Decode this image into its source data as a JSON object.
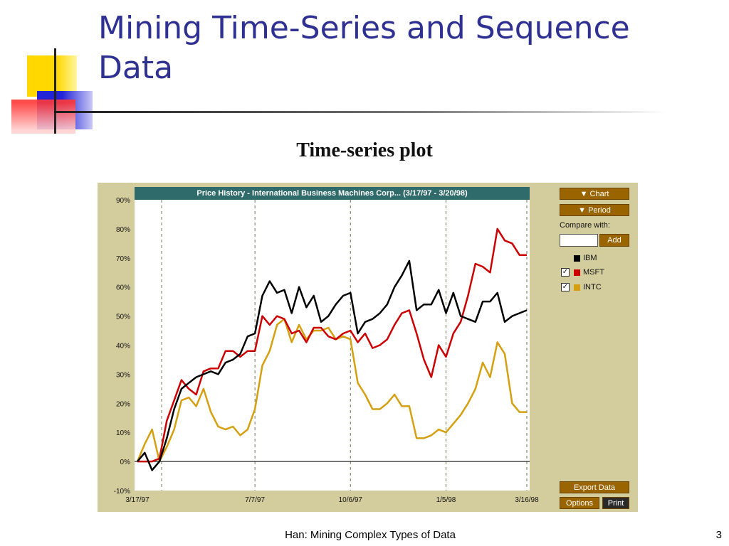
{
  "slide": {
    "title": "Mining Time-Series and Sequence Data",
    "subtitle": "Time-series plot",
    "footer_text": "Han: Mining Complex Types of Data",
    "page_number": "3"
  },
  "controls": {
    "chart_button": "▼ Chart",
    "period_button": "▼ Period",
    "compare_label": "Compare with:",
    "compare_value": "",
    "add_button": "Add",
    "export_button": "Export Data",
    "options_button": "Options",
    "print_button": "Print"
  },
  "legend": [
    {
      "label": "IBM",
      "checked": false,
      "color": "#000000"
    },
    {
      "label": "MSFT",
      "checked": true,
      "color": "#cc0000"
    },
    {
      "label": "INTC",
      "checked": true,
      "color": "#d4a010"
    }
  ],
  "chart_data": {
    "type": "line",
    "title": "Price History - International Business Machines Corp... (3/17/97 - 3/20/98)",
    "xlabel": "",
    "ylabel": "",
    "ylim": [
      -10,
      90
    ],
    "yticks": [
      -10,
      0,
      10,
      20,
      30,
      40,
      50,
      60,
      70,
      80,
      90
    ],
    "ytick_labels": [
      "-10%",
      "0%",
      "10%",
      "20%",
      "30%",
      "40%",
      "50%",
      "60%",
      "70%",
      "80%",
      "90%"
    ],
    "xlim": [
      0,
      53
    ],
    "xticks": [
      0,
      16,
      29,
      42,
      53
    ],
    "xtick_labels": [
      "3/17/97",
      "7/7/97",
      "10/6/97",
      "1/5/98",
      "3/16/98"
    ],
    "grid": "vertical-dashed",
    "series": [
      {
        "name": "IBM",
        "color": "#000000",
        "x": [
          0,
          1,
          2,
          3,
          4,
          5,
          6,
          7,
          8,
          9,
          10,
          11,
          12,
          13,
          14,
          15,
          16,
          17,
          18,
          19,
          20,
          21,
          22,
          23,
          24,
          25,
          26,
          27,
          28,
          29,
          30,
          31,
          32,
          33,
          34,
          35,
          36,
          37,
          38,
          39,
          40,
          41,
          42,
          43,
          44,
          45,
          46,
          47,
          48,
          49,
          50,
          51,
          52,
          53
        ],
        "values": [
          0,
          3,
          -3,
          0,
          8,
          18,
          25,
          27,
          29,
          30,
          31,
          30,
          34,
          35,
          37,
          43,
          44,
          57,
          62,
          58,
          59,
          51,
          60,
          53,
          57,
          48,
          50,
          54,
          57,
          58,
          44,
          48,
          49,
          51,
          54,
          60,
          64,
          69,
          52,
          54,
          54,
          59,
          51,
          58,
          50,
          49,
          48,
          55,
          55,
          58,
          48,
          50,
          51,
          52
        ]
      },
      {
        "name": "MSFT",
        "color": "#cc0000",
        "x": [
          0,
          1,
          2,
          3,
          4,
          5,
          6,
          7,
          8,
          9,
          10,
          11,
          12,
          13,
          14,
          15,
          16,
          17,
          18,
          19,
          20,
          21,
          22,
          23,
          24,
          25,
          26,
          27,
          28,
          29,
          30,
          31,
          32,
          33,
          34,
          35,
          36,
          37,
          38,
          39,
          40,
          41,
          42,
          43,
          44,
          45,
          46,
          47,
          48,
          49,
          50,
          51,
          52,
          53
        ],
        "values": [
          0,
          0,
          0,
          1,
          14,
          21,
          28,
          25,
          23,
          31,
          32,
          32,
          38,
          38,
          36,
          38,
          38,
          50,
          47,
          50,
          49,
          44,
          45,
          41,
          46,
          46,
          43,
          42,
          44,
          45,
          41,
          44,
          39,
          40,
          42,
          47,
          51,
          52,
          44,
          35,
          29,
          40,
          36,
          44,
          48,
          57,
          68,
          67,
          65,
          80,
          76,
          75,
          71,
          71
        ]
      },
      {
        "name": "INTC",
        "color": "#d4a010",
        "x": [
          0,
          1,
          2,
          3,
          4,
          5,
          6,
          7,
          8,
          9,
          10,
          11,
          12,
          13,
          14,
          15,
          16,
          17,
          18,
          19,
          20,
          21,
          22,
          23,
          24,
          25,
          26,
          27,
          28,
          29,
          30,
          31,
          32,
          33,
          34,
          35,
          36,
          37,
          38,
          39,
          40,
          41,
          42,
          43,
          44,
          45,
          46,
          47,
          48,
          49,
          50,
          51,
          52,
          53
        ],
        "values": [
          0,
          6,
          11,
          0,
          5,
          11,
          21,
          22,
          19,
          25,
          17,
          12,
          11,
          12,
          9,
          11,
          18,
          33,
          38,
          47,
          49,
          41,
          47,
          42,
          45,
          45,
          46,
          42,
          43,
          42,
          27,
          23,
          18,
          18,
          20,
          23,
          19,
          19,
          8,
          8,
          9,
          11,
          10,
          13,
          16,
          20,
          25,
          34,
          29,
          41,
          37,
          20,
          17,
          17
        ]
      }
    ]
  }
}
